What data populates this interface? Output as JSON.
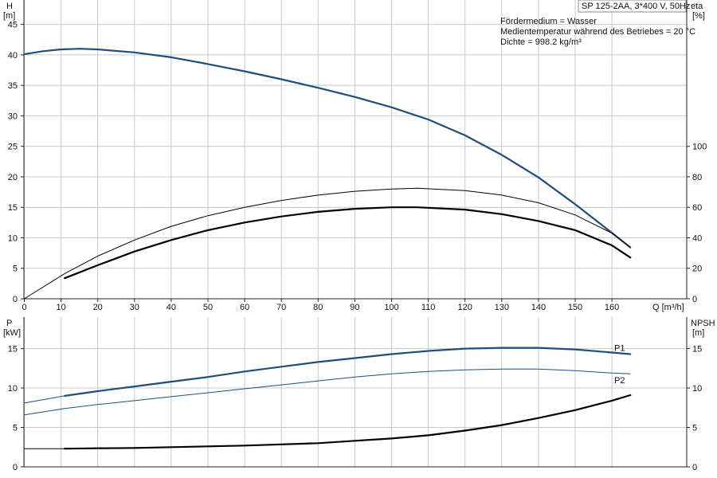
{
  "header": {
    "model": "SP 125-2AA, 3*400 V, 50Hz",
    "info_lines": [
      "Fördermedium = Wasser",
      "Medientemperatur während des Betriebes = 20 °C",
      "Dichte = 998.2 kg/m³"
    ]
  },
  "chart_data": [
    {
      "type": "line",
      "panel": "top",
      "xlabel": "Q [m³/h]",
      "xlim": [
        0,
        167
      ],
      "x_ticks": [
        0,
        10,
        20,
        30,
        40,
        50,
        60,
        70,
        80,
        90,
        100,
        110,
        120,
        130,
        140,
        150,
        160
      ],
      "left_axis": {
        "label": [
          "H",
          "[m]"
        ],
        "lim": [
          0,
          49
        ],
        "ticks": [
          0,
          5,
          10,
          15,
          20,
          25,
          30,
          35,
          40,
          45
        ]
      },
      "right_axis": {
        "label": [
          "eta",
          "[%]"
        ],
        "lim": [
          0,
          196
        ],
        "ticks": [
          0,
          20,
          40,
          60,
          80,
          100
        ]
      },
      "grid": true,
      "series": [
        {
          "axis": "left",
          "color": "#1f4e7a",
          "width": 2.2,
          "x": [
            0,
            5,
            10,
            15,
            20,
            30,
            40,
            50,
            60,
            70,
            80,
            90,
            100,
            110,
            120,
            130,
            140,
            150,
            160,
            165
          ],
          "y": [
            40.1,
            40.6,
            40.9,
            41.0,
            40.9,
            40.4,
            39.6,
            38.5,
            37.3,
            36.0,
            34.6,
            33.1,
            31.4,
            29.4,
            26.8,
            23.6,
            19.9,
            15.5,
            10.8,
            8.4
          ]
        },
        {
          "axis": "right",
          "color": "#000000",
          "width": 1.0,
          "x": [
            0,
            11,
            20,
            30,
            40,
            50,
            60,
            70,
            80,
            90,
            100,
            107,
            120,
            130,
            140,
            150,
            160,
            165
          ],
          "y": [
            0,
            16.5,
            28,
            38.5,
            47.5,
            54.5,
            60,
            64.5,
            68,
            70.5,
            72,
            72.5,
            71,
            68,
            63,
            55,
            43,
            34
          ]
        },
        {
          "axis": "right",
          "color": "#000000",
          "width": 2.2,
          "x": [
            11,
            20,
            30,
            40,
            50,
            60,
            70,
            80,
            90,
            100,
            107,
            120,
            130,
            140,
            150,
            160,
            165
          ],
          "y": [
            13.5,
            22,
            31,
            38.5,
            45,
            50,
            54,
            57,
            59,
            60,
            60,
            58.5,
            55.5,
            51,
            45,
            35,
            27
          ]
        }
      ]
    },
    {
      "type": "line",
      "panel": "bottom",
      "xlim": [
        0,
        167
      ],
      "x_ticks": [
        0,
        10,
        20,
        30,
        40,
        50,
        60,
        70,
        80,
        90,
        100,
        110,
        120,
        130,
        140,
        150,
        160
      ],
      "left_axis": {
        "label": [
          "P",
          "[kW]"
        ],
        "lim": [
          0,
          19
        ],
        "ticks": [
          0,
          5,
          10,
          15
        ]
      },
      "right_axis": {
        "label": [
          "NPSH",
          "[m]"
        ],
        "lim": [
          0,
          19
        ],
        "ticks": [
          0,
          5,
          10,
          15
        ]
      },
      "grid": true,
      "series": [
        {
          "axis": "left",
          "color": "#1f4e7a",
          "width": 1.0,
          "x": [
            0,
            11
          ],
          "y": [
            8.1,
            9.0
          ]
        },
        {
          "name": "P1",
          "axis": "left",
          "color": "#1f4e7a",
          "width": 2.2,
          "x": [
            11,
            20,
            30,
            40,
            50,
            60,
            70,
            80,
            90,
            100,
            110,
            120,
            130,
            140,
            150,
            160,
            165
          ],
          "y": [
            9.0,
            9.6,
            10.2,
            10.8,
            11.4,
            12.1,
            12.7,
            13.3,
            13.8,
            14.3,
            14.7,
            15.0,
            15.1,
            15.1,
            14.9,
            14.5,
            14.3
          ]
        },
        {
          "name": "P2",
          "axis": "left",
          "color": "#1f4e7a",
          "width": 1.0,
          "x": [
            0,
            11,
            20,
            30,
            40,
            50,
            60,
            70,
            80,
            90,
            100,
            110,
            120,
            130,
            140,
            150,
            160,
            165
          ],
          "y": [
            6.6,
            7.4,
            7.9,
            8.4,
            8.9,
            9.4,
            9.9,
            10.4,
            10.9,
            11.4,
            11.8,
            12.1,
            12.3,
            12.4,
            12.4,
            12.2,
            11.9,
            11.8
          ]
        },
        {
          "axis": "right",
          "color": "#000000",
          "width": 1.0,
          "x": [
            0,
            11
          ],
          "y": [
            2.3,
            2.3
          ]
        },
        {
          "axis": "right",
          "color": "#000000",
          "width": 2.2,
          "x": [
            11,
            20,
            30,
            40,
            50,
            60,
            70,
            80,
            90,
            100,
            110,
            120,
            130,
            140,
            150,
            160,
            165
          ],
          "y": [
            2.3,
            2.35,
            2.4,
            2.5,
            2.6,
            2.7,
            2.85,
            3.0,
            3.3,
            3.6,
            4.0,
            4.6,
            5.3,
            6.2,
            7.2,
            8.4,
            9.1
          ]
        }
      ]
    }
  ]
}
